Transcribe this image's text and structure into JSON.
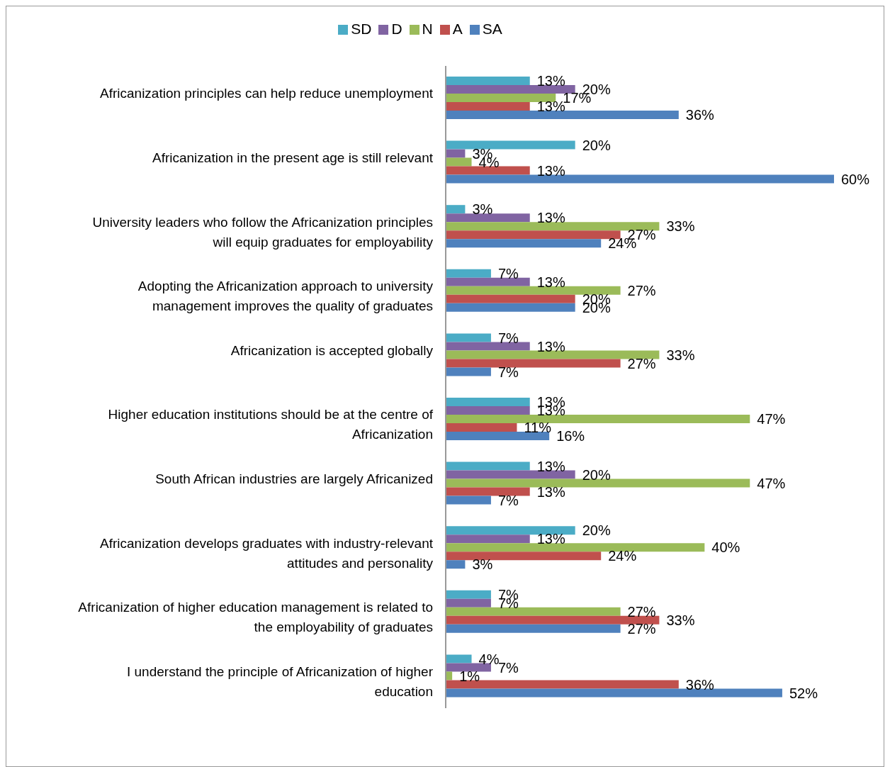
{
  "chart_data": {
    "type": "bar",
    "orientation": "horizontal",
    "legend": "top",
    "categories": [
      "Africanization principles can help reduce unemployment",
      "Africanization in the present age is still relevant",
      "University leaders who follow the Africanization principles will equip graduates for employability",
      "Adopting the Africanization approach to university management improves the quality of graduates",
      "Africanization is accepted globally",
      "Higher education institutions should be at the centre of Africanization",
      "South African industries are largely Africanized",
      "Africanization develops graduates with industry-relevant attitudes and personality",
      "Africanization of higher education management is related to the employability of graduates",
      "I understand the principle of Africanization of higher education"
    ],
    "series": [
      {
        "name": "SD",
        "color": "#4bacc6",
        "values": [
          13,
          20,
          3,
          7,
          7,
          13,
          13,
          20,
          7,
          4
        ],
        "value_labels": [
          "13%",
          "20%",
          "3%",
          "7%",
          "7%",
          "13%",
          "13%",
          "20%",
          "7%",
          "4%"
        ]
      },
      {
        "name": "D",
        "color": "#8064a2",
        "values": [
          20,
          3,
          13,
          13,
          13,
          13,
          20,
          13,
          7,
          7
        ],
        "value_labels": [
          "20%",
          "3%",
          "13%",
          "13%",
          "13%",
          "13%",
          "20%",
          "13%",
          "7%",
          "7%"
        ]
      },
      {
        "name": "N",
        "color": "#9bbb59",
        "values": [
          17,
          4,
          33,
          27,
          33,
          47,
          47,
          40,
          27,
          1
        ],
        "value_labels": [
          "17%",
          "4%",
          "33%",
          "27%",
          "33%",
          "47%",
          "47%",
          "40%",
          "27%",
          "1%"
        ]
      },
      {
        "name": "A",
        "color": "#c0504d",
        "values": [
          13,
          13,
          27,
          20,
          27,
          11,
          13,
          24,
          33,
          36
        ],
        "value_labels": [
          "13%",
          "13%",
          "27%",
          "20%",
          "27%",
          "11%",
          "13%",
          "24%",
          "33%",
          "36%"
        ]
      },
      {
        "name": "SA",
        "color": "#4f81bd",
        "values": [
          36,
          60,
          24,
          20,
          7,
          16,
          7,
          3,
          27,
          52
        ],
        "value_labels": [
          "36%",
          "60%",
          "24%",
          "20%",
          "7%",
          "16%",
          "7%",
          "3%",
          "27%",
          "52%"
        ]
      }
    ]
  }
}
